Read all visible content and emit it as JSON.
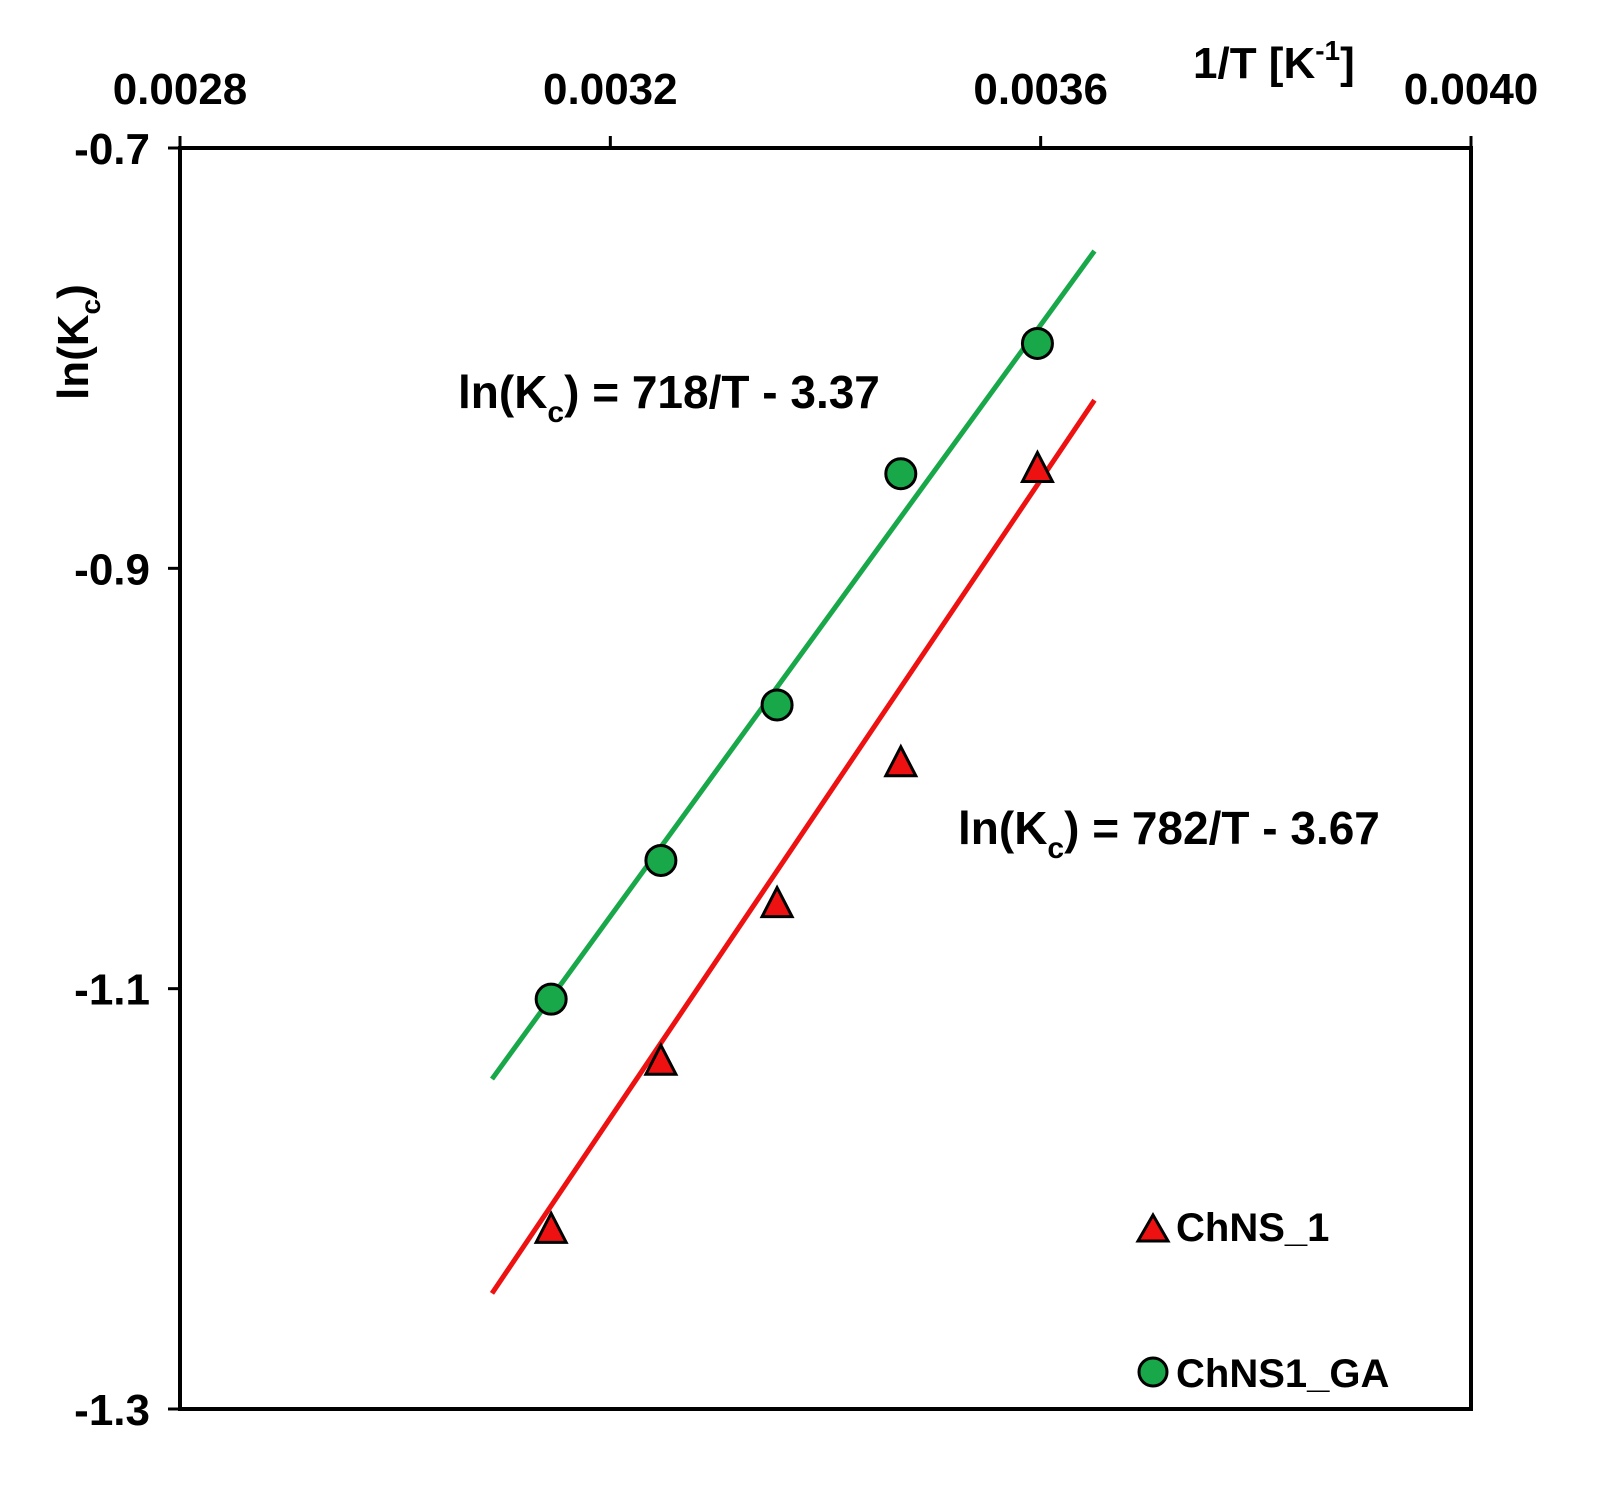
{
  "chart_data": {
    "type": "scatter",
    "xlabel": "1/T [K",
    "xlabel_superscript": "-1",
    "xlabel_suffix": "]",
    "ylabel": "ln(K",
    "ylabel_subscript": "c",
    "ylabel_suffix": ")",
    "xlim": [
      0.0028,
      0.004
    ],
    "ylim": [
      -1.3,
      -0.7
    ],
    "x_ticks": [
      0.0028,
      0.0032,
      0.0036,
      0.004
    ],
    "x_tick_labels": [
      "0.0028",
      "0.0032",
      "0.0036",
      "0.0040"
    ],
    "y_ticks": [
      -0.7,
      -0.9,
      -1.1,
      -1.3
    ],
    "y_tick_labels": [
      "-0.7",
      "-0.9",
      "-1.1",
      "-1.3"
    ],
    "x_axis_position": "top",
    "grid": false,
    "legend_position": "bottom-right",
    "series": [
      {
        "name": "ChNS_1",
        "marker": "triangle",
        "color": "#ee1111",
        "x": [
          0.003145,
          0.003247,
          0.003355,
          0.00347,
          0.003597
        ],
        "y": [
          -1.215,
          -1.135,
          -1.06,
          -0.993,
          -0.853
        ],
        "fit": {
          "x_start": 0.00309,
          "x_end": 0.00365,
          "y_start": -1.245,
          "y_end": -0.82
        }
      },
      {
        "name": "ChNS1_GA",
        "marker": "circle",
        "color": "#18a84a",
        "x": [
          0.003145,
          0.003247,
          0.003355,
          0.00347,
          0.003597
        ],
        "y": [
          -1.105,
          -1.039,
          -0.965,
          -0.855,
          -0.793
        ],
        "fit": {
          "x_start": 0.00309,
          "x_end": 0.00365,
          "y_start": -1.143,
          "y_end": -0.749
        }
      }
    ],
    "annotations": [
      {
        "for": "ChNS1_GA",
        "prefix": "ln(K",
        "sub": "c",
        "suffix": ") = 718/T - 3.37"
      },
      {
        "for": "ChNS_1",
        "prefix": "ln(K",
        "sub": "c",
        "suffix": ") = 782/T - 3.67"
      }
    ]
  }
}
